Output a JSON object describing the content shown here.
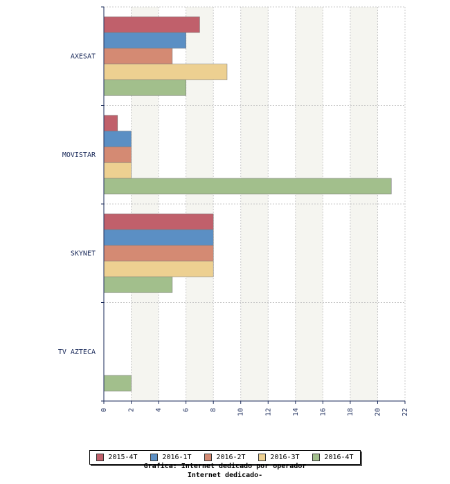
{
  "chart_data": {
    "type": "bar",
    "orientation": "horizontal",
    "categories": [
      "AXESAT",
      "MOVISTAR",
      "SKYNET",
      "TV AZTECA"
    ],
    "series": [
      {
        "name": "2015-4T",
        "color": "#c0606b",
        "values": [
          7,
          1,
          8,
          0
        ]
      },
      {
        "name": "2016-1T",
        "color": "#5b8fc4",
        "values": [
          6,
          2,
          8,
          0
        ]
      },
      {
        "name": "2016-2T",
        "color": "#d48a73",
        "values": [
          5,
          2,
          8,
          0
        ]
      },
      {
        "name": "2016-3T",
        "color": "#edd091",
        "values": [
          9,
          2,
          8,
          0
        ]
      },
      {
        "name": "2016-4T",
        "color": "#a2bf8c",
        "values": [
          6,
          21,
          5,
          2
        ]
      }
    ],
    "x_ticks": [
      0,
      2,
      4,
      6,
      8,
      10,
      12,
      14,
      16,
      18,
      20,
      22
    ],
    "xlim": [
      0,
      22
    ],
    "grid": true,
    "legend_position": "bottom"
  },
  "caption": {
    "line1": "Grafica: Internet dedicado por operador",
    "line2": "Internet dedicado-"
  }
}
